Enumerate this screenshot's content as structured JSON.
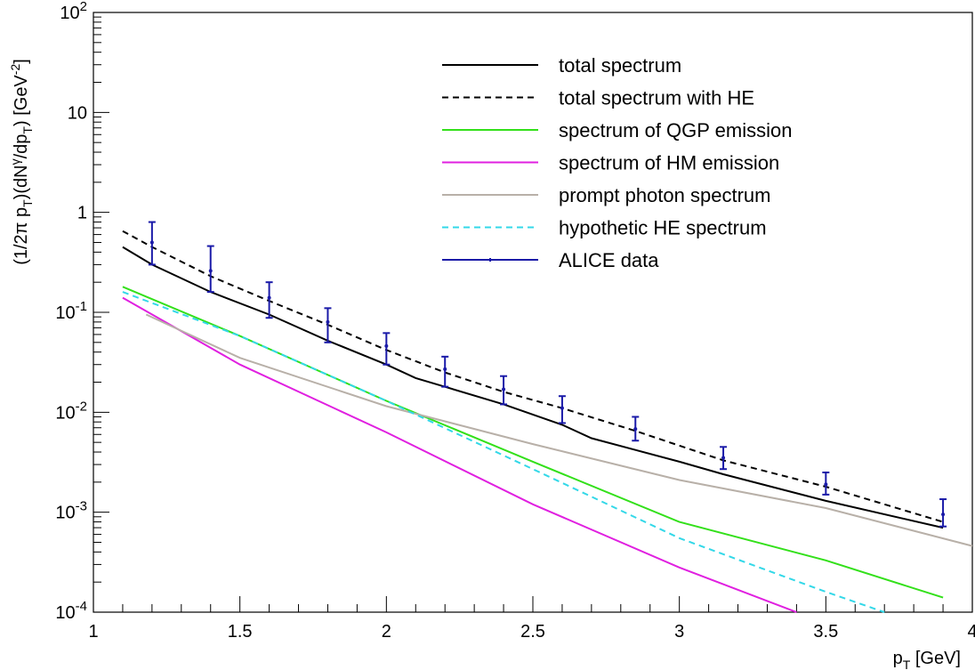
{
  "chart_data": {
    "type": "line",
    "xlabel": "p_T [GeV]",
    "ylabel": "(1/2π p_T)(dN^γ/dp_T) [GeV^-2]",
    "xlim": [
      1,
      4
    ],
    "ylim": [
      0.0001,
      100
    ],
    "yscale": "log",
    "x_ticks": [
      "1",
      "1.5",
      "2",
      "2.5",
      "3",
      "3.5",
      "4"
    ],
    "y_ticks": [
      {
        "mantissa": "10",
        "exp": "-4"
      },
      {
        "mantissa": "10",
        "exp": "-3"
      },
      {
        "mantissa": "10",
        "exp": "-2"
      },
      {
        "mantissa": "10",
        "exp": "-1"
      },
      {
        "mantissa": "1",
        "exp": ""
      },
      {
        "mantissa": "10",
        "exp": ""
      },
      {
        "mantissa": "10",
        "exp": "2"
      }
    ],
    "legend_position": "top-right",
    "grid": false,
    "series": [
      {
        "name": "total spectrum",
        "style": "solid",
        "color": "#000000",
        "x": [
          1.1,
          1.2,
          1.4,
          1.6,
          1.8,
          2.0,
          2.1,
          2.2,
          2.4,
          2.6,
          2.7,
          2.85,
          3.0,
          3.15,
          3.5,
          3.9
        ],
        "y": [
          0.45,
          0.3,
          0.16,
          0.095,
          0.052,
          0.03,
          0.022,
          0.018,
          0.012,
          0.0075,
          0.0055,
          0.0042,
          0.0032,
          0.0024,
          0.0013,
          0.0007
        ]
      },
      {
        "name": "total spectrum with HE",
        "style": "dashed",
        "color": "#000000",
        "x": [
          1.1,
          1.2,
          1.4,
          1.6,
          1.8,
          2.0,
          2.2,
          2.4,
          2.6,
          2.85,
          3.15,
          3.5,
          3.9
        ],
        "y": [
          0.65,
          0.45,
          0.23,
          0.13,
          0.075,
          0.042,
          0.025,
          0.016,
          0.011,
          0.0065,
          0.0033,
          0.0018,
          0.0008
        ]
      },
      {
        "name": "spectrum of QGP emission",
        "style": "solid",
        "color": "#33e01a",
        "x": [
          1.1,
          1.5,
          2.0,
          2.5,
          3.0,
          3.5,
          3.9
        ],
        "y": [
          0.18,
          0.058,
          0.013,
          0.0032,
          0.0008,
          0.00033,
          0.00014
        ]
      },
      {
        "name": "spectrum of HM emission",
        "style": "solid",
        "color": "#e020e0",
        "x": [
          1.1,
          1.5,
          2.0,
          2.5,
          3.0,
          3.4
        ],
        "y": [
          0.14,
          0.03,
          0.0063,
          0.0012,
          0.00028,
          0.0001
        ]
      },
      {
        "name": "prompt photon spectrum",
        "style": "solid",
        "color": "#b8b0a8",
        "x": [
          1.18,
          1.5,
          2.0,
          2.5,
          3.0,
          3.5,
          4.0
        ],
        "y": [
          0.095,
          0.035,
          0.0115,
          0.0048,
          0.0021,
          0.0011,
          0.00046
        ]
      },
      {
        "name": "hypothetic HE spectrum",
        "style": "dashed",
        "color": "#33d8e8",
        "x": [
          1.1,
          1.5,
          2.0,
          2.5,
          3.0,
          3.5,
          3.7
        ],
        "y": [
          0.16,
          0.058,
          0.013,
          0.0027,
          0.00055,
          0.00016,
          0.0001
        ]
      },
      {
        "name": "ALICE data",
        "style": "points",
        "color": "#1a1aa8",
        "x": [
          1.2,
          1.4,
          1.6,
          1.8,
          2.0,
          2.2,
          2.4,
          2.6,
          2.85,
          3.15,
          3.5,
          3.9
        ],
        "y": [
          0.5,
          0.26,
          0.14,
          0.08,
          0.046,
          0.027,
          0.017,
          0.011,
          0.0068,
          0.0035,
          0.0019,
          0.00095
        ],
        "y_low": [
          0.3,
          0.16,
          0.088,
          0.05,
          0.03,
          0.018,
          0.012,
          0.0078,
          0.0052,
          0.0027,
          0.0015,
          0.00072
        ],
        "y_high": [
          0.8,
          0.46,
          0.2,
          0.11,
          0.062,
          0.036,
          0.023,
          0.0145,
          0.009,
          0.0045,
          0.0025,
          0.00135
        ]
      }
    ]
  }
}
